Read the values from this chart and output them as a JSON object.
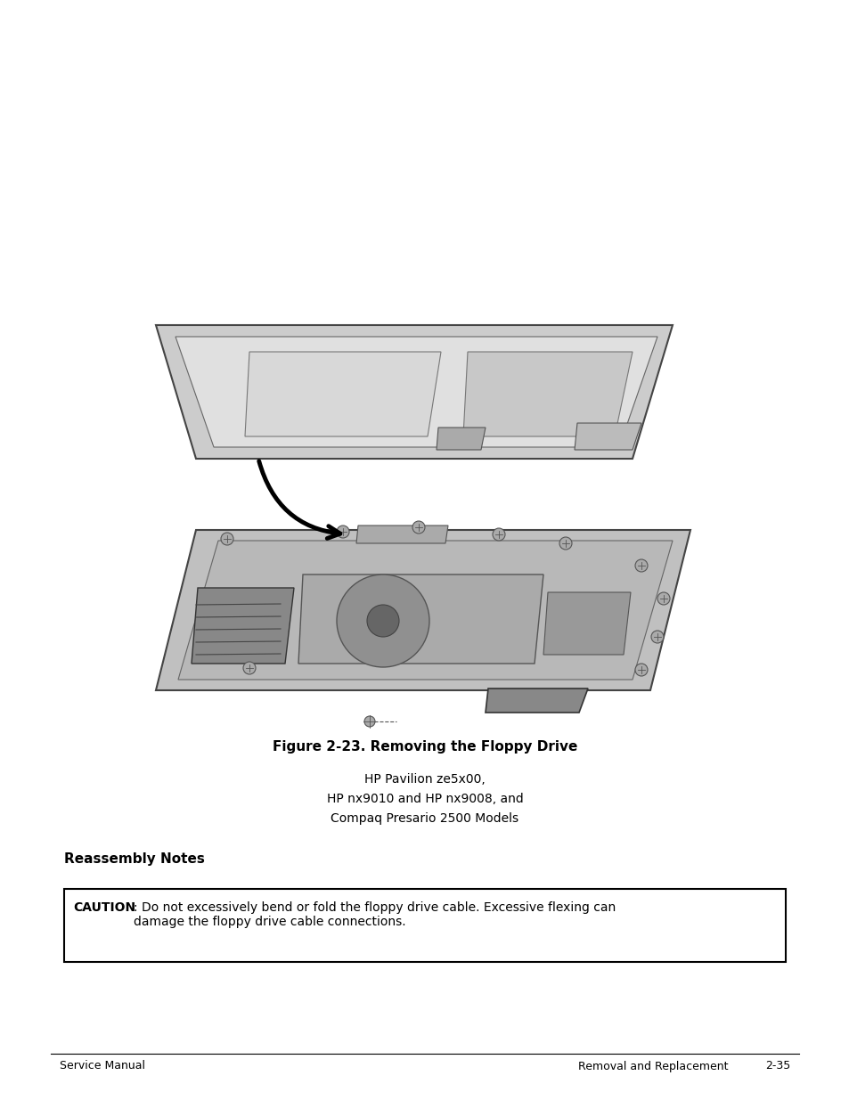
{
  "fig_width": 9.54,
  "fig_height": 12.35,
  "bg_color": "#ffffff",
  "figure_caption": "Figure 2-23. Removing the Floppy Drive",
  "caption_fontsize": 11,
  "subtitle_lines": [
    "HP Pavilion ze5x00,",
    "HP nx9010 and HP nx9008, and",
    "Compaq Presario 2500 Models"
  ],
  "subtitle_fontsize": 10,
  "section_heading": "Reassembly Notes",
  "section_heading_fontsize": 11,
  "caution_label": "CAUTION",
  "caution_text": ": Do not excessively bend or fold the floppy drive cable. Excessive flexing can\ndamage the floppy drive cable connections.",
  "caution_fontsize": 10,
  "footer_left": "Service Manual",
  "footer_right": "Removal and Replacement",
  "footer_page": "2-35",
  "footer_fontsize": 9
}
